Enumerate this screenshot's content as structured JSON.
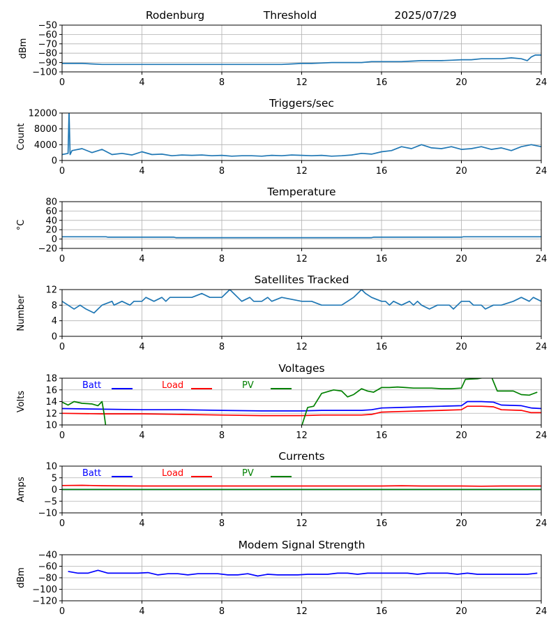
{
  "header": {
    "station": "Rodenburg",
    "title": "Threshold",
    "date": "2025/07/29"
  },
  "chart_data": [
    {
      "type": "line",
      "title": "",
      "ylabel": "dBm",
      "xlabel": "",
      "x_ticks": [
        0,
        4,
        8,
        12,
        16,
        20,
        24
      ],
      "xlim": [
        0,
        24
      ],
      "ylim": [
        -100,
        -50
      ],
      "y_ticks": [
        -100,
        -90,
        -80,
        -70,
        -60,
        -50
      ],
      "grid": true,
      "series": [
        {
          "color": "#1f77b4",
          "x": [
            0,
            0.5,
            1,
            1.5,
            2,
            2.5,
            3,
            3.5,
            4,
            4.5,
            5,
            5.5,
            6,
            6.5,
            7,
            7.5,
            8,
            8.5,
            9,
            9.5,
            10,
            10.5,
            11,
            11.5,
            12,
            12.5,
            13,
            13.5,
            14,
            14.5,
            15,
            15.5,
            16,
            16.5,
            17,
            17.5,
            18,
            18.5,
            19,
            19.5,
            20,
            20.5,
            21,
            21.5,
            22,
            22.5,
            23,
            23.3,
            23.5,
            23.7,
            24
          ],
          "y": [
            -91,
            -91,
            -91,
            -91.5,
            -92,
            -92,
            -92,
            -92,
            -92,
            -92,
            -92,
            -92,
            -92,
            -92,
            -92,
            -92,
            -92,
            -92,
            -92,
            -92,
            -92,
            -92,
            -92,
            -91.5,
            -91,
            -91,
            -90.5,
            -90,
            -90,
            -90,
            -90,
            -89,
            -89,
            -89,
            -89,
            -88.5,
            -88,
            -88,
            -88,
            -87.5,
            -87,
            -87,
            -86,
            -86,
            -86,
            -85,
            -86,
            -88,
            -84,
            -82,
            -82
          ]
        }
      ]
    },
    {
      "type": "line",
      "title": "Triggers/sec",
      "ylabel": "Count",
      "xlabel": "",
      "x_ticks": [
        0,
        4,
        8,
        12,
        16,
        20,
        24
      ],
      "xlim": [
        0,
        24
      ],
      "ylim": [
        0,
        12000
      ],
      "y_ticks": [
        0,
        4000,
        8000,
        12000
      ],
      "grid": true,
      "series": [
        {
          "color": "#1f77b4",
          "x": [
            0,
            0.3,
            0.35,
            0.4,
            0.5,
            1,
            1.5,
            2,
            2.5,
            3,
            3.5,
            4,
            4.5,
            5,
            5.5,
            6,
            6.5,
            7,
            7.5,
            8,
            8.5,
            9,
            9.5,
            10,
            10.5,
            11,
            11.5,
            12,
            12.5,
            13,
            13.5,
            14,
            14.5,
            15,
            15.5,
            16,
            16.5,
            17,
            17.5,
            18,
            18.5,
            19,
            19.5,
            20,
            20.5,
            21,
            21.5,
            22,
            22.5,
            23,
            23.5,
            24
          ],
          "y": [
            1500,
            1800,
            12500,
            1500,
            2500,
            3000,
            2000,
            2800,
            1500,
            1800,
            1400,
            2200,
            1500,
            1600,
            1200,
            1400,
            1300,
            1400,
            1200,
            1300,
            1100,
            1200,
            1200,
            1100,
            1300,
            1200,
            1400,
            1300,
            1200,
            1300,
            1100,
            1200,
            1400,
            1800,
            1600,
            2200,
            2500,
            3500,
            3000,
            4000,
            3200,
            3000,
            3500,
            2800,
            3000,
            3500,
            2800,
            3200,
            2500,
            3500,
            4000,
            3500
          ]
        }
      ]
    },
    {
      "type": "line",
      "title": "Temperature",
      "ylabel": "°C",
      "xlabel": "",
      "x_ticks": [
        0,
        4,
        8,
        12,
        16,
        20,
        24
      ],
      "xlim": [
        0,
        24
      ],
      "ylim": [
        -20,
        80
      ],
      "y_ticks": [
        -20,
        0,
        20,
        40,
        60,
        80
      ],
      "grid": true,
      "series": [
        {
          "color": "#1f77b4",
          "x": [
            0,
            2.2,
            2.3,
            5.6,
            5.7,
            15.5,
            15.6,
            20,
            20.1,
            24
          ],
          "y": [
            5,
            5,
            4,
            4,
            3,
            3,
            4,
            4,
            5,
            5
          ]
        }
      ]
    },
    {
      "type": "line",
      "title": "Satellites Tracked",
      "ylabel": "Number",
      "xlabel": "",
      "x_ticks": [
        0,
        4,
        8,
        12,
        16,
        20,
        24
      ],
      "xlim": [
        0,
        24
      ],
      "ylim": [
        0,
        12
      ],
      "y_ticks": [
        0,
        4,
        8,
        12
      ],
      "grid": true,
      "series": [
        {
          "color": "#1f77b4",
          "x": [
            0,
            0.3,
            0.6,
            0.9,
            1.2,
            1.6,
            1.8,
            2,
            2.5,
            2.6,
            3,
            3.4,
            3.6,
            4,
            4.2,
            4.6,
            5,
            5.2,
            5.4,
            5.6,
            6,
            6.5,
            7,
            7.4,
            7.6,
            8,
            8.2,
            8.4,
            8.6,
            8.8,
            9,
            9.4,
            9.6,
            10,
            10.3,
            10.5,
            11,
            12,
            12.5,
            13,
            13.5,
            14,
            14.3,
            14.6,
            14.8,
            15,
            15.2,
            15.5,
            16,
            16.2,
            16.4,
            16.6,
            17,
            17.4,
            17.6,
            17.8,
            18,
            18.4,
            18.8,
            19,
            19.4,
            19.6,
            20,
            20.4,
            20.6,
            21,
            21.2,
            21.6,
            22,
            22.6,
            23,
            23.4,
            23.6,
            24
          ],
          "y": [
            9,
            8,
            7,
            8,
            7,
            6,
            7,
            8,
            9,
            8,
            9,
            8,
            9,
            9,
            10,
            9,
            10,
            9,
            10,
            10,
            10,
            10,
            11,
            10,
            10,
            10,
            11,
            12,
            11,
            10,
            9,
            10,
            9,
            9,
            10,
            9,
            10,
            9,
            9,
            8,
            8,
            8,
            9,
            10,
            11,
            12,
            11,
            10,
            9,
            9,
            8,
            9,
            8,
            9,
            8,
            9,
            8,
            7,
            8,
            8,
            8,
            7,
            9,
            9,
            8,
            8,
            7,
            8,
            8,
            9,
            10,
            9,
            10,
            9
          ]
        }
      ]
    },
    {
      "type": "line",
      "title": "Voltages",
      "ylabel": "Volts",
      "xlabel": "",
      "x_ticks": [
        0,
        4,
        8,
        12,
        16,
        20,
        24
      ],
      "xlim": [
        0,
        24
      ],
      "ylim": [
        10,
        18
      ],
      "y_ticks": [
        10,
        12,
        14,
        16,
        18
      ],
      "grid": true,
      "series": [
        {
          "name": "Batt",
          "color": "#0000ff",
          "x": [
            0,
            2,
            4,
            6,
            8,
            10,
            12,
            13,
            14,
            15,
            15.5,
            16,
            17,
            18,
            19,
            20,
            20.3,
            21,
            21.6,
            22,
            23,
            23.5,
            24
          ],
          "y": [
            12.8,
            12.7,
            12.6,
            12.6,
            12.5,
            12.4,
            12.4,
            12.5,
            12.5,
            12.5,
            12.6,
            12.9,
            13,
            13.1,
            13.2,
            13.3,
            14,
            14,
            13.9,
            13.4,
            13.3,
            12.9,
            12.8
          ]
        },
        {
          "name": "Load",
          "color": "#ff0000",
          "x": [
            0,
            2,
            4,
            6,
            8,
            10,
            12,
            13,
            14,
            15,
            15.5,
            16,
            17,
            18,
            19,
            20,
            20.3,
            21,
            21.6,
            22,
            23,
            23.5,
            24
          ],
          "y": [
            12,
            11.9,
            11.9,
            11.8,
            11.7,
            11.6,
            11.6,
            11.7,
            11.7,
            11.7,
            11.8,
            12.2,
            12.3,
            12.4,
            12.5,
            12.6,
            13.2,
            13.2,
            13.1,
            12.6,
            12.5,
            12.1,
            12.1
          ]
        },
        {
          "name": "PV",
          "color": "#008000",
          "x": [
            0,
            0.3,
            0.6,
            1,
            1.5,
            1.8,
            2,
            2.1,
            2.2
          ],
          "y": [
            13.9,
            13.4,
            14,
            13.7,
            13.6,
            13.3,
            14,
            12,
            9.5
          ]
        },
        {
          "name": "PV",
          "color": "#008000",
          "x": [
            12,
            12.3,
            12.6,
            13,
            13.4,
            13.6,
            14,
            14.3,
            14.6,
            15,
            15.3,
            15.6,
            16,
            16.4,
            16.8,
            17.2,
            17.6,
            18,
            18.5,
            19,
            19.5,
            20,
            20.2,
            20.8,
            21.3,
            21.5,
            21.8,
            22.6,
            23,
            23.4,
            23.8
          ],
          "y": [
            9.8,
            13,
            13.2,
            15.4,
            15.8,
            16,
            15.8,
            14.8,
            15.2,
            16.2,
            15.8,
            15.6,
            16.4,
            16.4,
            16.5,
            16.4,
            16.3,
            16.3,
            16.3,
            16.2,
            16.2,
            16.3,
            17.8,
            17.9,
            18.2,
            18.3,
            15.8,
            15.8,
            15.2,
            15.1,
            15.6
          ]
        }
      ],
      "legend": {
        "position": "top-left",
        "entries": [
          "Batt",
          "Load",
          "PV"
        ]
      }
    },
    {
      "type": "line",
      "title": "Currents",
      "ylabel": "Amps",
      "xlabel": "",
      "x_ticks": [
        0,
        4,
        8,
        12,
        16,
        20,
        24
      ],
      "xlim": [
        0,
        24
      ],
      "ylim": [
        -10,
        10
      ],
      "y_ticks": [
        -10,
        -5,
        0,
        5,
        10
      ],
      "grid": true,
      "series": [
        {
          "name": "Batt",
          "color": "#0000ff",
          "x": [
            0,
            24
          ],
          "y": [
            0,
            0
          ]
        },
        {
          "name": "Load",
          "color": "#ff0000",
          "x": [
            0,
            1,
            2,
            4,
            8,
            12,
            16,
            17,
            18,
            20,
            21,
            22,
            24
          ],
          "y": [
            1.7,
            1.8,
            1.6,
            1.5,
            1.5,
            1.5,
            1.5,
            1.6,
            1.5,
            1.5,
            1.4,
            1.5,
            1.5
          ]
        },
        {
          "name": "PV",
          "color": "#008000",
          "x": [
            0,
            24
          ],
          "y": [
            0,
            0
          ]
        }
      ],
      "legend": {
        "position": "top-left",
        "entries": [
          "Batt",
          "Load",
          "PV"
        ]
      }
    },
    {
      "type": "line",
      "title": "Modem Signal Strength",
      "ylabel": "dBm",
      "xlabel": "",
      "x_ticks": [
        0,
        4,
        8,
        12,
        16,
        20,
        24
      ],
      "xlim": [
        0,
        24
      ],
      "ylim": [
        -120,
        -40
      ],
      "y_ticks": [
        -120,
        -100,
        -80,
        -60,
        -40
      ],
      "grid": true,
      "series": [
        {
          "color": "#0000ff",
          "x": [
            0.3,
            0.8,
            1.3,
            1.8,
            2.3,
            2.8,
            3.3,
            3.8,
            4.3,
            4.8,
            5.3,
            5.8,
            6.3,
            6.8,
            7.3,
            7.8,
            8.3,
            8.8,
            9.3,
            9.8,
            10.3,
            10.8,
            11.3,
            11.8,
            12.3,
            12.8,
            13.3,
            13.8,
            14.3,
            14.8,
            15.3,
            15.8,
            16.3,
            16.8,
            17.3,
            17.8,
            18.3,
            18.8,
            19.3,
            19.8,
            20.3,
            20.8,
            21.3,
            21.8,
            22.3,
            22.8,
            23.3,
            23.8
          ],
          "y": [
            -69,
            -72,
            -72,
            -67,
            -72,
            -72,
            -72,
            -72,
            -71,
            -75,
            -73,
            -73,
            -75,
            -73,
            -73,
            -73,
            -75,
            -75,
            -73,
            -77,
            -74,
            -75,
            -75,
            -75,
            -74,
            -74,
            -74,
            -72,
            -72,
            -74,
            -72,
            -72,
            -72,
            -72,
            -72,
            -74,
            -72,
            -72,
            -72,
            -74,
            -72,
            -74,
            -74,
            -74,
            -74,
            -74,
            -74,
            -72
          ]
        }
      ]
    }
  ]
}
